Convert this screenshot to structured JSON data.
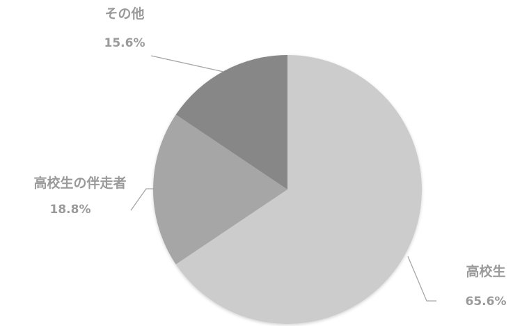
{
  "chart_data": {
    "type": "pie",
    "title": "",
    "categories": [
      "高校生",
      "高校生の伴走者",
      "その他"
    ],
    "values": [
      65.6,
      18.8,
      15.6
    ],
    "value_labels": [
      "65.6%",
      "18.8%",
      "15.6%"
    ],
    "colors": [
      "#cccccc",
      "#a6a6a6",
      "#878787"
    ],
    "start_angle_deg": 0,
    "direction": "clockwise",
    "legend": "none",
    "data_labels": "outside-with-leader-lines"
  }
}
